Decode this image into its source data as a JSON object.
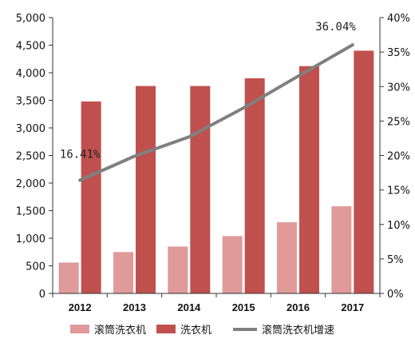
{
  "chart_data": {
    "type": "bar",
    "categories": [
      "2012",
      "2013",
      "2014",
      "2015",
      "2016",
      "2017"
    ],
    "series": [
      {
        "name": "滚筒洗衣机",
        "kind": "bar",
        "axis": "left",
        "color": "#e09a9a",
        "values": [
          560,
          750,
          850,
          1040,
          1290,
          1580
        ]
      },
      {
        "name": "洗衣机",
        "kind": "bar",
        "axis": "left",
        "color": "#c0504d",
        "values": [
          3480,
          3760,
          3760,
          3900,
          4120,
          4400
        ]
      },
      {
        "name": "滚筒洗衣机增速",
        "kind": "line",
        "axis": "right",
        "color": "#808080",
        "values": [
          16.41,
          19.9,
          22.7,
          26.9,
          31.5,
          36.04
        ]
      }
    ],
    "data_labels": [
      {
        "series": 2,
        "index": 0,
        "text": "16.41%"
      },
      {
        "series": 2,
        "index": 5,
        "text": "36.04%"
      }
    ],
    "ylim": [
      0,
      5000
    ],
    "yticks": [
      "0",
      "500",
      "1,000",
      "1,500",
      "2,000",
      "2,500",
      "3,000",
      "3,500",
      "4,000",
      "4,500",
      "5,000"
    ],
    "y2lim": [
      0,
      40
    ],
    "y2ticks": [
      "0%",
      "5%",
      "10%",
      "15%",
      "20%",
      "25%",
      "30%",
      "35%",
      "40%"
    ],
    "legend_position": "bottom",
    "grid": false
  }
}
